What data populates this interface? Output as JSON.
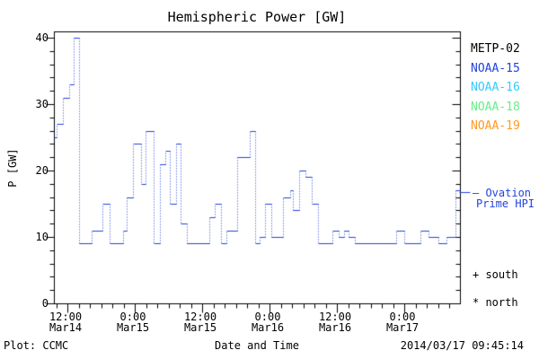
{
  "title": "Hemispheric Power [GW]",
  "footer": {
    "plot_credit": "Plot: CCMC",
    "timestamp": "2014/03/17 09:45:14"
  },
  "annotations": {
    "ovation_line1": "— Ovation",
    "ovation_line2": "Prime HPI",
    "south_marker": "+ south",
    "north_marker": "* north"
  },
  "legend": [
    {
      "label": "METP-02",
      "color": "#000000"
    },
    {
      "label": "NOAA-15",
      "color": "#2243DC"
    },
    {
      "label": "NOAA-16",
      "color": "#33CCFF"
    },
    {
      "label": "NOAA-18",
      "color": "#66EE88"
    },
    {
      "label": "NOAA-19",
      "color": "#FF9922"
    }
  ],
  "colors": {
    "curve_blue": "#2243DC",
    "frame_black": "#000000",
    "background": "#FFFFFF"
  },
  "chart_data": {
    "type": "line",
    "subtype": "step-with-dotted-risers",
    "title": "Hemispheric Power [GW]",
    "xlabel": "Date and Time",
    "ylabel": "P [GW]",
    "ylim": [
      0,
      40
    ],
    "y_major_ticks": [
      0,
      10,
      20,
      30,
      40
    ],
    "y_minor_step": 2,
    "grid": false,
    "legend_position": "right-outside",
    "x_hours_range": [
      9.6,
      81.9
    ],
    "x_minor_step_hours": 2,
    "x_major_ticks": [
      {
        "hour": 12,
        "time": "12:00",
        "date": "Mar14"
      },
      {
        "hour": 24,
        "time": "0:00",
        "date": "Mar15"
      },
      {
        "hour": 36,
        "time": "12:00",
        "date": "Mar15"
      },
      {
        "hour": 48,
        "time": "0:00",
        "date": "Mar16"
      },
      {
        "hour": 60,
        "time": "12:00",
        "date": "Mar16"
      },
      {
        "hour": 72,
        "time": "0:00",
        "date": "Mar17"
      }
    ],
    "series": [
      {
        "name": "Ovation Prime HPI (NOAA-15)",
        "color": "#2243DC",
        "units": "GW, hours since 2014-03-14 00:00 UT",
        "steps_hour_value": [
          [
            9.6,
            25
          ],
          [
            10.1,
            27
          ],
          [
            11.2,
            31
          ],
          [
            12.3,
            33
          ],
          [
            13.1,
            40
          ],
          [
            14.1,
            9
          ],
          [
            16.3,
            11
          ],
          [
            18.2,
            15
          ],
          [
            19.5,
            9
          ],
          [
            21.9,
            11
          ],
          [
            22.6,
            16
          ],
          [
            23.7,
            24
          ],
          [
            25.1,
            18
          ],
          [
            25.9,
            26
          ],
          [
            27.4,
            9
          ],
          [
            28.5,
            21
          ],
          [
            29.4,
            23
          ],
          [
            30.2,
            15
          ],
          [
            31.4,
            24
          ],
          [
            32.2,
            12
          ],
          [
            33.3,
            9
          ],
          [
            37.3,
            13
          ],
          [
            38.2,
            15
          ],
          [
            39.4,
            9
          ],
          [
            40.3,
            11
          ],
          [
            42.2,
            22
          ],
          [
            44.5,
            26
          ],
          [
            45.4,
            9
          ],
          [
            46.2,
            10
          ],
          [
            47.2,
            15
          ],
          [
            48.3,
            10
          ],
          [
            50.4,
            16
          ],
          [
            51.7,
            17
          ],
          [
            52.2,
            14
          ],
          [
            53.2,
            20
          ],
          [
            54.4,
            19
          ],
          [
            55.5,
            15
          ],
          [
            56.6,
            9
          ],
          [
            59.2,
            11
          ],
          [
            60.3,
            10
          ],
          [
            61.3,
            11
          ],
          [
            62.1,
            10
          ],
          [
            63.2,
            9
          ],
          [
            70.6,
            11
          ],
          [
            72.0,
            9
          ],
          [
            74.9,
            11
          ],
          [
            76.3,
            10
          ],
          [
            78.1,
            9
          ],
          [
            79.5,
            10
          ],
          [
            81.1,
            17
          ]
        ]
      }
    ],
    "end_marker_value": 17
  }
}
